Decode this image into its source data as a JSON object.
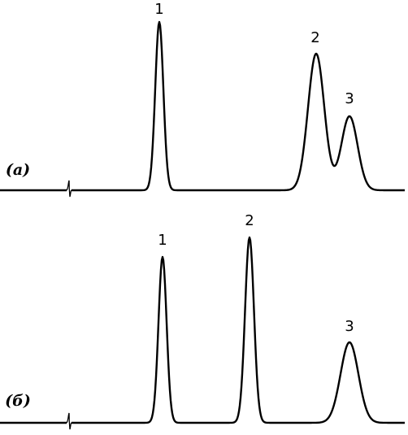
{
  "panels": [
    {
      "label": "(a)",
      "peaks": [
        "1",
        "2",
        "3"
      ]
    },
    {
      "label": "(б)",
      "peaks": [
        "1",
        "2",
        "3"
      ]
    }
  ]
}
